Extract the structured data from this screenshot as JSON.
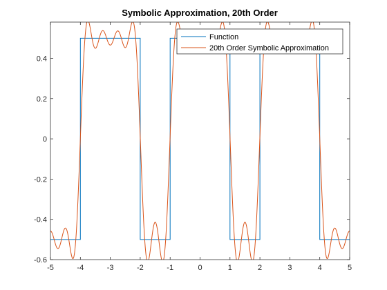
{
  "chart_data": {
    "type": "line",
    "title": "Symbolic Approximation, 20th Order",
    "xlabel": "",
    "ylabel": "",
    "xlim": [
      -5,
      5
    ],
    "ylim": [
      -0.6,
      0.58
    ],
    "x_ticks": [
      "-5",
      "-4",
      "-3",
      "-2",
      "-1",
      "0",
      "1",
      "2",
      "3",
      "4",
      "5"
    ],
    "y_ticks": [
      "-0.6",
      "-0.4",
      "-0.2",
      "0",
      "0.2",
      "0.4"
    ],
    "grid": false,
    "legend_position": "top-right",
    "series": [
      {
        "name": "Function",
        "color": "#0072BD",
        "kind": "square_wave",
        "amplitude": 0.5,
        "high_intervals": [
          [
            -4,
            -2
          ],
          [
            -1,
            1
          ],
          [
            2,
            4
          ]
        ],
        "low_intervals": [
          [
            -5,
            -4
          ],
          [
            -2,
            -1
          ],
          [
            1,
            2
          ],
          [
            4,
            5
          ]
        ]
      },
      {
        "name": "20th Order Symbolic Approximation",
        "color": "#D95319",
        "kind": "fourier_approximation",
        "order": 20
      }
    ]
  }
}
